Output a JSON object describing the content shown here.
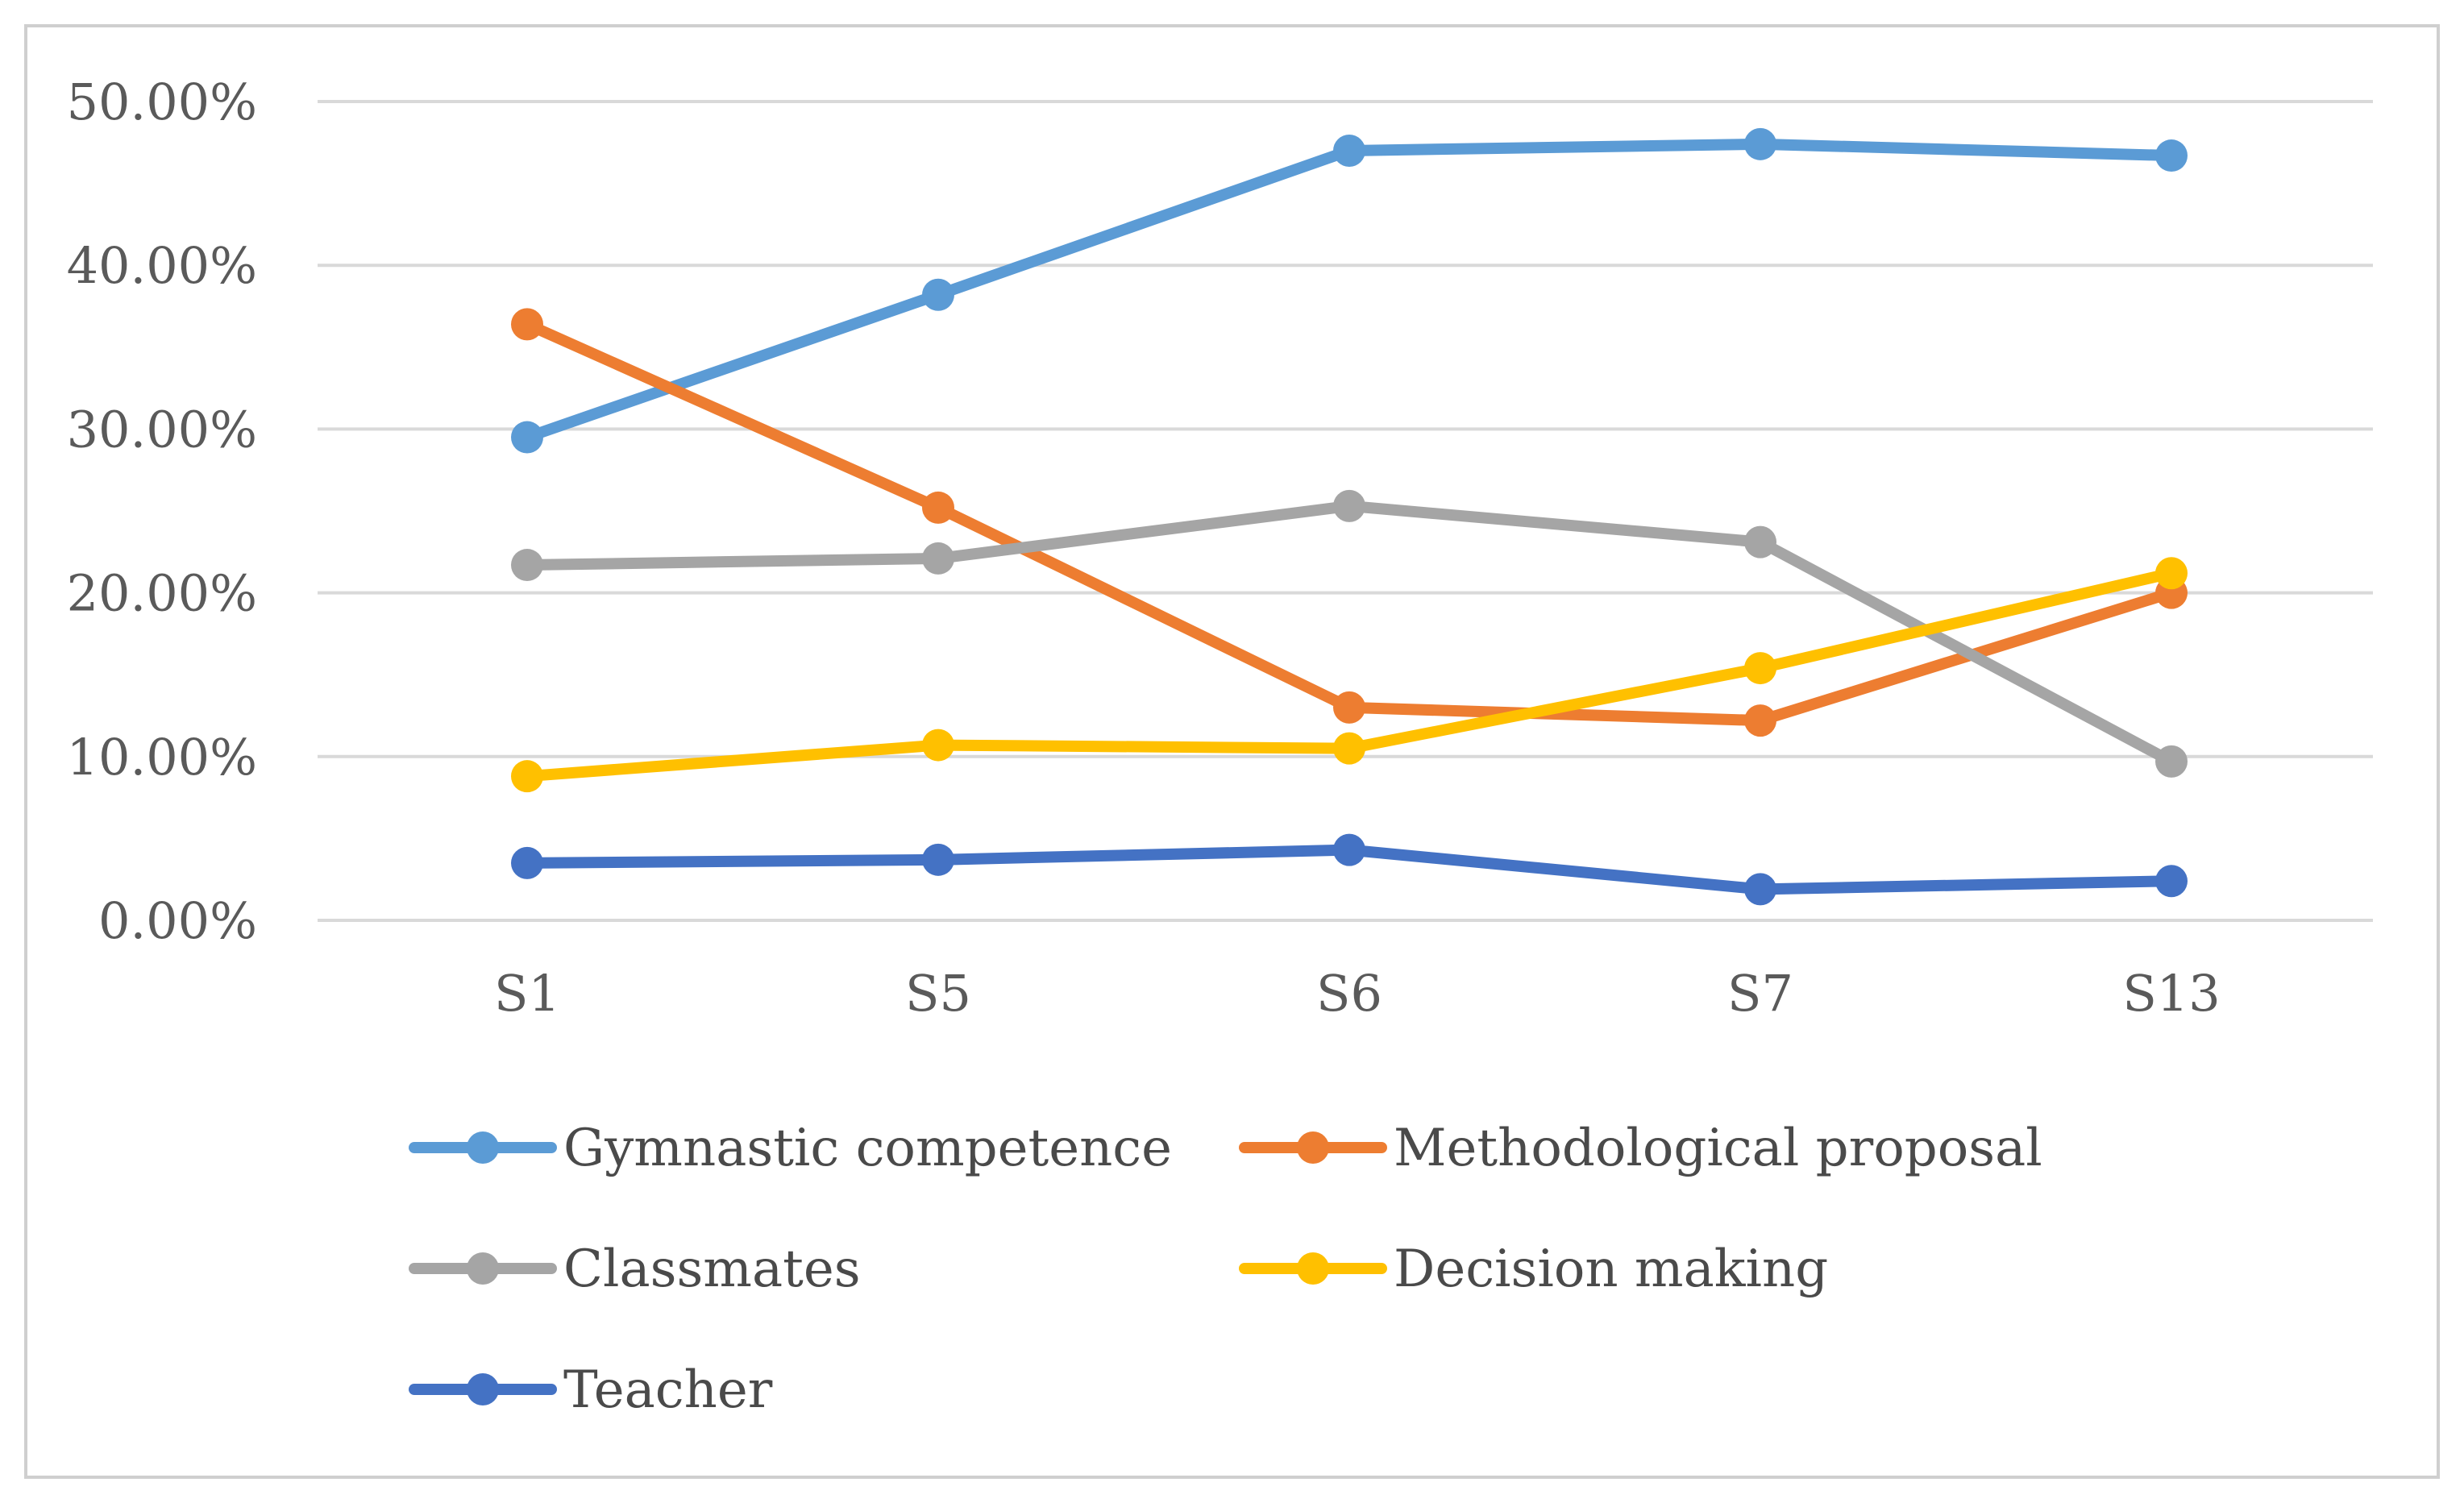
{
  "chart_data": {
    "type": "line",
    "categories": [
      "S1",
      "S5",
      "S6",
      "S7",
      "S13"
    ],
    "ylim": [
      0,
      0.5
    ],
    "y_ticks": [
      0,
      0.1,
      0.2,
      0.3,
      0.4,
      0.5
    ],
    "y_tick_labels": [
      "0.00%",
      "10.00%",
      "20.00%",
      "30.00%",
      "40.00%",
      "50.00%"
    ],
    "grid": true,
    "legend_position": "bottom",
    "series": [
      {
        "name": "Gymnastic competence",
        "color": "#5b9bd5",
        "values": [
          0.295,
          0.382,
          0.47,
          0.474,
          0.467
        ]
      },
      {
        "name": "Methodological proposal",
        "color": "#ed7d31",
        "values": [
          0.364,
          0.252,
          0.13,
          0.122,
          0.2
        ]
      },
      {
        "name": "Classmates",
        "color": "#a5a5a5",
        "values": [
          0.217,
          0.221,
          0.253,
          0.231,
          0.097
        ]
      },
      {
        "name": "Decision making",
        "color": "#ffc000",
        "values": [
          0.088,
          0.107,
          0.105,
          0.154,
          0.212
        ]
      },
      {
        "name": "Teacher",
        "color": "#4472c4",
        "values": [
          0.035,
          0.037,
          0.043,
          0.019,
          0.024
        ]
      }
    ]
  }
}
